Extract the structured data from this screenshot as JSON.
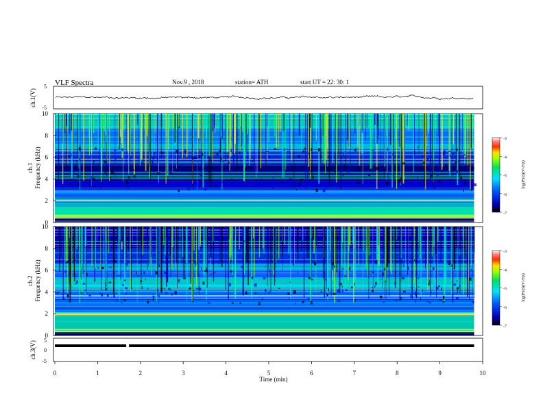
{
  "header": {
    "title": "VLF  Spectra",
    "date": "Nov.9  , 2018",
    "station": "station= ATH",
    "start": "start  UT  =    22: 30: 1"
  },
  "chart_data": [
    {
      "type": "line",
      "name": "ch1-waveform",
      "ylabel": "ch.1(V)",
      "ylim": [
        -5,
        5
      ],
      "yticks": [
        "5",
        "-5"
      ],
      "xlim": [
        0,
        10
      ],
      "baseline": 0
    },
    {
      "type": "heatmap",
      "name": "ch1-spectrogram",
      "ylabel_channel": "ch.1",
      "ylabel": "Frequency  (kHz)",
      "ylim": [
        0,
        10
      ],
      "yticks": [
        "0",
        "2",
        "4",
        "6",
        "8",
        "10"
      ],
      "xlim": [
        0,
        9.8
      ],
      "colorbar": {
        "label": "log(PSD)(V²/Hz)",
        "range": [
          -7,
          -3
        ],
        "ticks": [
          "-3",
          "-4",
          "-5",
          "-6",
          "-7"
        ]
      }
    },
    {
      "type": "heatmap",
      "name": "ch2-spectrogram",
      "ylabel_channel": "ch.2",
      "ylabel": "Frequency  (kHz)",
      "ylim": [
        0,
        10
      ],
      "yticks": [
        "0",
        "2",
        "4",
        "6",
        "8",
        "10"
      ],
      "xlim": [
        0,
        9.8
      ],
      "colorbar": {
        "label": "log(PSD)(V²/Hz)",
        "range": [
          -7,
          -3
        ],
        "ticks": [
          "-3",
          "-4",
          "-5",
          "-6",
          "-7"
        ]
      }
    },
    {
      "type": "line",
      "name": "ch3-waveform",
      "ylabel": "ch.3(V)",
      "ylim": [
        -5,
        5
      ],
      "yticks": [
        "5",
        "0",
        "-5"
      ],
      "xlim": [
        0,
        10
      ],
      "level": 0,
      "gap_at": 1.7
    }
  ],
  "xaxis": {
    "label": "Time  (min)",
    "range": [
      0,
      10
    ],
    "ticks": [
      "0",
      "1",
      "2",
      "3",
      "4",
      "5",
      "6",
      "7",
      "8",
      "9",
      "10"
    ]
  }
}
